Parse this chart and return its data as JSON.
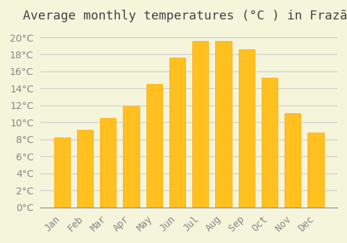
{
  "title": "Average monthly temperatures (°C ) in Frazão",
  "months": [
    "Jan",
    "Feb",
    "Mar",
    "Apr",
    "May",
    "Jun",
    "Jul",
    "Aug",
    "Sep",
    "Oct",
    "Nov",
    "Dec"
  ],
  "values": [
    8.2,
    9.1,
    10.5,
    11.9,
    14.5,
    17.6,
    19.6,
    19.6,
    18.6,
    15.3,
    11.1,
    8.8
  ],
  "bar_color": "#FFC020",
  "bar_edge_color": "#FFA500",
  "background_color": "#F5F5DC",
  "grid_color": "#CCCCCC",
  "ylim": [
    0,
    21
  ],
  "yticks": [
    0,
    2,
    4,
    6,
    8,
    10,
    12,
    14,
    16,
    18,
    20
  ],
  "title_fontsize": 13,
  "tick_fontsize": 10,
  "title_color": "#444444",
  "tick_color": "#888888"
}
